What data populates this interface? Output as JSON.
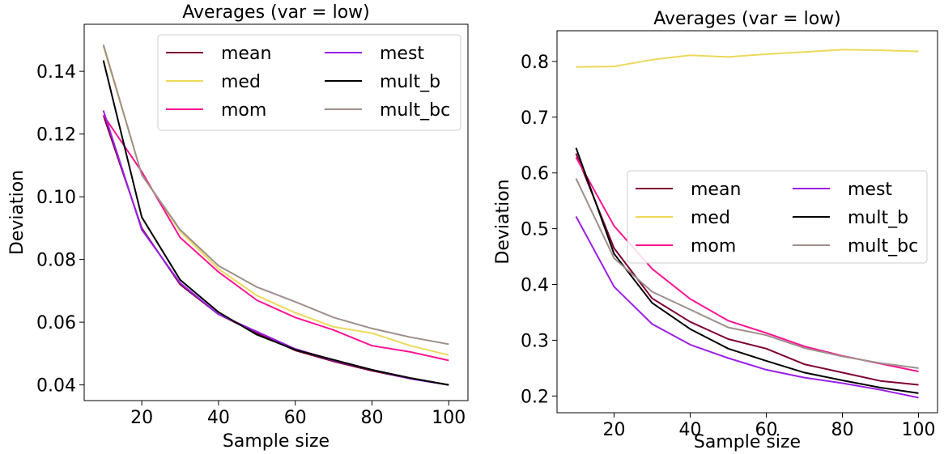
{
  "chart_data": [
    {
      "type": "line",
      "title": "Averages (var = low)",
      "xlabel": "Sample size",
      "ylabel": "Deviation",
      "x": [
        10,
        20,
        30,
        40,
        50,
        60,
        70,
        80,
        90,
        100
      ],
      "xlim": [
        5,
        105
      ],
      "ylim": [
        0.035,
        0.155
      ],
      "xticks": [
        20,
        40,
        60,
        80,
        100
      ],
      "xtick_labels": [
        "20",
        "40",
        "60",
        "80",
        "100"
      ],
      "yticks": [
        0.04,
        0.06,
        0.08,
        0.1,
        0.12,
        0.14
      ],
      "ytick_labels": [
        "0.04",
        "0.06",
        "0.08",
        "0.10",
        "0.12",
        "0.14"
      ],
      "grid": false,
      "legend": {
        "placement": "top-right",
        "columns": 2
      },
      "series": [
        {
          "name": "mean",
          "color": "#7f0033",
          "values": [
            0.126,
            0.09,
            0.072,
            0.0625,
            0.0565,
            0.051,
            0.0475,
            0.0445,
            0.042,
            0.04
          ]
        },
        {
          "name": "med",
          "color": "#ecd95a",
          "values": [
            0.148,
            0.107,
            0.089,
            0.077,
            0.0685,
            0.063,
            0.0585,
            0.0565,
            0.0525,
            0.0495
          ]
        },
        {
          "name": "mom",
          "color": "#ff1493",
          "values": [
            0.126,
            0.108,
            0.087,
            0.076,
            0.067,
            0.0615,
            0.0575,
            0.0525,
            0.0505,
            0.0478
          ]
        },
        {
          "name": "mest",
          "color": "#9b1fe8",
          "values": [
            0.1275,
            0.0895,
            0.0725,
            0.0625,
            0.057,
            0.0515,
            0.0478,
            0.0448,
            0.042,
            0.04
          ]
        },
        {
          "name": "mult_b",
          "color": "#000000",
          "values": [
            0.1435,
            0.0935,
            0.0735,
            0.0632,
            0.056,
            0.0512,
            0.048,
            0.0448,
            0.0422,
            0.04
          ]
        },
        {
          "name": "mult_bc",
          "color": "#9e8f8a",
          "values": [
            0.1485,
            0.107,
            0.0895,
            0.078,
            0.0712,
            0.0665,
            0.0615,
            0.058,
            0.0552,
            0.053
          ]
        }
      ]
    },
    {
      "type": "line",
      "title": "Averages (var = low)",
      "xlabel": "Sample size",
      "ylabel": "Deviation",
      "x": [
        10,
        20,
        30,
        40,
        50,
        60,
        70,
        80,
        90,
        100
      ],
      "xlim": [
        5,
        105
      ],
      "ylim": [
        0.17,
        0.855
      ],
      "xticks": [
        20,
        40,
        60,
        80,
        100
      ],
      "xtick_labels": [
        "20",
        "40",
        "60",
        "80",
        "100"
      ],
      "yticks": [
        0.2,
        0.3,
        0.4,
        0.5,
        0.6,
        0.7,
        0.8
      ],
      "ytick_labels": [
        "0.2",
        "0.3",
        "0.4",
        "0.5",
        "0.6",
        "0.7",
        "0.8"
      ],
      "grid": false,
      "legend": {
        "placement": "center-right",
        "columns": 2
      },
      "series": [
        {
          "name": "mean",
          "color": "#7f0033",
          "values": [
            0.635,
            0.465,
            0.375,
            0.333,
            0.302,
            0.285,
            0.257,
            0.242,
            0.227,
            0.22
          ]
        },
        {
          "name": "med",
          "color": "#ecd95a",
          "values": [
            0.79,
            0.791,
            0.803,
            0.811,
            0.808,
            0.813,
            0.817,
            0.821,
            0.82,
            0.818
          ]
        },
        {
          "name": "mom",
          "color": "#ff1493",
          "values": [
            0.628,
            0.505,
            0.428,
            0.374,
            0.335,
            0.313,
            0.289,
            0.272,
            0.258,
            0.244
          ]
        },
        {
          "name": "mest",
          "color": "#9b1fe8",
          "values": [
            0.522,
            0.396,
            0.329,
            0.292,
            0.268,
            0.247,
            0.233,
            0.223,
            0.211,
            0.197
          ]
        },
        {
          "name": "mult_b",
          "color": "#000000",
          "values": [
            0.645,
            0.455,
            0.367,
            0.32,
            0.285,
            0.263,
            0.242,
            0.228,
            0.215,
            0.205
          ]
        },
        {
          "name": "mult_bc",
          "color": "#9e8f8a",
          "values": [
            0.59,
            0.447,
            0.387,
            0.355,
            0.323,
            0.309,
            0.286,
            0.271,
            0.259,
            0.25
          ]
        }
      ]
    }
  ]
}
